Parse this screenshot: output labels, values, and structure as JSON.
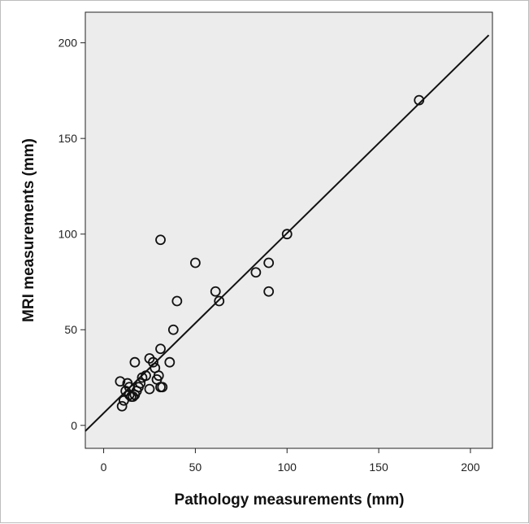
{
  "chart_data": {
    "type": "scatter",
    "xlabel": "Pathology measurements (mm)",
    "ylabel": "MRI measurements (mm)",
    "xlim": [
      -10,
      212
    ],
    "ylim": [
      -12,
      216
    ],
    "x_ticks": [
      "0",
      "50",
      "100",
      "150",
      "200"
    ],
    "y_ticks": [
      "0",
      "50",
      "100",
      "150",
      "200"
    ],
    "x_tick_values": [
      0,
      50,
      100,
      150,
      200
    ],
    "y_tick_values": [
      0,
      50,
      100,
      150,
      200
    ],
    "grid": false,
    "plot_background": "#ececec",
    "marker_color": "#111111",
    "fit_line": {
      "x": [
        -10,
        210
      ],
      "y": [
        -3,
        204
      ]
    },
    "points": [
      {
        "x": 172,
        "y": 170
      },
      {
        "x": 100,
        "y": 100
      },
      {
        "x": 90,
        "y": 85
      },
      {
        "x": 90,
        "y": 70
      },
      {
        "x": 83,
        "y": 80
      },
      {
        "x": 63,
        "y": 65
      },
      {
        "x": 61,
        "y": 70
      },
      {
        "x": 50,
        "y": 85
      },
      {
        "x": 40,
        "y": 65
      },
      {
        "x": 38,
        "y": 50
      },
      {
        "x": 36,
        "y": 33
      },
      {
        "x": 31,
        "y": 97
      },
      {
        "x": 31,
        "y": 40
      },
      {
        "x": 31,
        "y": 20
      },
      {
        "x": 32,
        "y": 20
      },
      {
        "x": 30,
        "y": 26
      },
      {
        "x": 29,
        "y": 24
      },
      {
        "x": 28,
        "y": 30
      },
      {
        "x": 27,
        "y": 33
      },
      {
        "x": 25,
        "y": 35
      },
      {
        "x": 25,
        "y": 19
      },
      {
        "x": 23,
        "y": 26
      },
      {
        "x": 21,
        "y": 25
      },
      {
        "x": 20,
        "y": 22
      },
      {
        "x": 19,
        "y": 20
      },
      {
        "x": 18,
        "y": 18
      },
      {
        "x": 17,
        "y": 33
      },
      {
        "x": 17,
        "y": 16
      },
      {
        "x": 16,
        "y": 15
      },
      {
        "x": 15,
        "y": 15
      },
      {
        "x": 14,
        "y": 16
      },
      {
        "x": 14,
        "y": 20
      },
      {
        "x": 13,
        "y": 22
      },
      {
        "x": 12,
        "y": 18
      },
      {
        "x": 11,
        "y": 13
      },
      {
        "x": 10,
        "y": 10
      },
      {
        "x": 9,
        "y": 23
      }
    ]
  }
}
